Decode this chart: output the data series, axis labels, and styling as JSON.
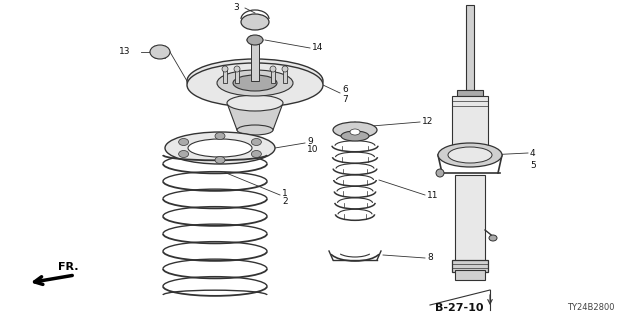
{
  "bg_color": "#ffffff",
  "line_color": "#333333",
  "fill_light": "#e8e8e8",
  "fill_mid": "#d0d0d0",
  "fill_dark": "#aaaaaa",
  "label_fontsize": 6.5,
  "ref_fontsize": 8,
  "diagram_ref": "B-27-10",
  "part_number": "TY24B2800",
  "figsize": [
    6.4,
    3.2
  ],
  "dpi": 100
}
